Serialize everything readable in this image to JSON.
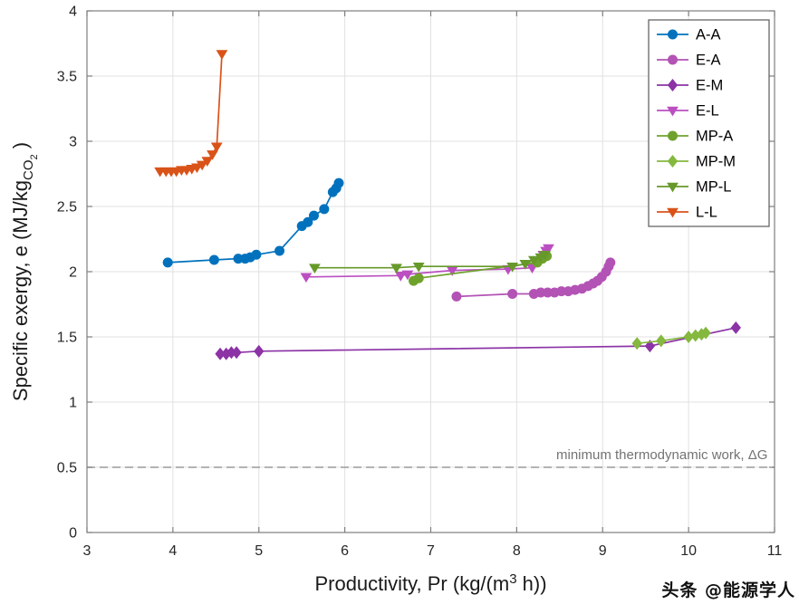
{
  "watermark": "头条 @能源学人",
  "chart_data": {
    "type": "line",
    "title": "",
    "xlabel": {
      "pre": "Productivity, Pr (kg/(m",
      "sup": "3",
      "post": " h))",
      "plain": "Productivity, Pr (kg/(m3 h))"
    },
    "ylabel": {
      "pre": "Specific exergy, e (MJ/kg",
      "sub": "CO",
      "subsub": "2",
      "post": " )",
      "plain": "Specific exergy, e (MJ/kgCO2)"
    },
    "xlim": [
      3,
      11
    ],
    "ylim": [
      0,
      4
    ],
    "xticks": [
      3,
      4,
      5,
      6,
      7,
      8,
      9,
      10,
      11
    ],
    "yticks": [
      0,
      0.5,
      1,
      1.5,
      2,
      2.5,
      3,
      3.5,
      4
    ],
    "grid": true,
    "legend_position": "top-right",
    "axes_box": true,
    "grid_color": "#e0e0e0",
    "box_color": "#7f7f7f",
    "tick_label_color": "#262626",
    "annotation": {
      "y": 0.5,
      "label": "minimum thermodynamic work, ΔG",
      "style": "dashed",
      "color": "#9a9a9a",
      "label_color": "#737373"
    },
    "series": [
      {
        "name": "A-A",
        "color": "#0072BD",
        "marker": "circle",
        "points": [
          [
            3.94,
            2.07
          ],
          [
            4.48,
            2.09
          ],
          [
            4.76,
            2.1
          ],
          [
            4.84,
            2.1
          ],
          [
            4.9,
            2.11
          ],
          [
            4.97,
            2.13
          ],
          [
            5.24,
            2.16
          ],
          [
            5.5,
            2.35
          ],
          [
            5.57,
            2.38
          ],
          [
            5.64,
            2.43
          ],
          [
            5.76,
            2.48
          ],
          [
            5.86,
            2.61
          ],
          [
            5.9,
            2.64
          ],
          [
            5.93,
            2.68
          ]
        ]
      },
      {
        "name": "E-A",
        "color": "#b353b5",
        "marker": "circle",
        "points": [
          [
            7.3,
            1.81
          ],
          [
            7.95,
            1.83
          ],
          [
            8.2,
            1.83
          ],
          [
            8.28,
            1.84
          ],
          [
            8.36,
            1.84
          ],
          [
            8.44,
            1.84
          ],
          [
            8.52,
            1.85
          ],
          [
            8.6,
            1.85
          ],
          [
            8.68,
            1.86
          ],
          [
            8.76,
            1.87
          ],
          [
            8.83,
            1.89
          ],
          [
            8.89,
            1.91
          ],
          [
            8.94,
            1.93
          ],
          [
            8.99,
            1.96
          ],
          [
            9.04,
            2.0
          ],
          [
            9.07,
            2.04
          ],
          [
            9.09,
            2.07
          ]
        ]
      },
      {
        "name": "E-M",
        "color": "#8c33a6",
        "marker": "diamond",
        "points": [
          [
            4.55,
            1.37
          ],
          [
            4.62,
            1.37
          ],
          [
            4.68,
            1.38
          ],
          [
            4.74,
            1.38
          ],
          [
            5.0,
            1.39
          ],
          [
            9.55,
            1.43
          ],
          [
            10.55,
            1.57
          ]
        ]
      },
      {
        "name": "E-L",
        "color": "#bb4fc1",
        "marker": "triangle-down",
        "points": [
          [
            5.55,
            1.96
          ],
          [
            6.65,
            1.97
          ],
          [
            6.73,
            1.98
          ],
          [
            7.25,
            2.01
          ],
          [
            7.9,
            2.02
          ],
          [
            8.18,
            2.03
          ],
          [
            8.26,
            2.08
          ],
          [
            8.31,
            2.13
          ],
          [
            8.34,
            2.16
          ],
          [
            8.37,
            2.18
          ]
        ]
      },
      {
        "name": "MP-A",
        "color": "#6fa22c",
        "marker": "circle",
        "points": [
          [
            6.8,
            1.93
          ],
          [
            6.86,
            1.95
          ],
          [
            8.24,
            2.07
          ],
          [
            8.3,
            2.1
          ],
          [
            8.35,
            2.12
          ]
        ]
      },
      {
        "name": "MP-M",
        "color": "#84b83e",
        "marker": "diamond",
        "points": [
          [
            9.4,
            1.45
          ],
          [
            9.68,
            1.47
          ],
          [
            10.0,
            1.5
          ],
          [
            10.08,
            1.51
          ],
          [
            10.15,
            1.52
          ],
          [
            10.2,
            1.53
          ]
        ]
      },
      {
        "name": "MP-L",
        "color": "#67992a",
        "marker": "triangle-down",
        "points": [
          [
            5.65,
            2.03
          ],
          [
            6.6,
            2.03
          ],
          [
            6.86,
            2.04
          ],
          [
            7.95,
            2.04
          ],
          [
            8.1,
            2.06
          ],
          [
            8.2,
            2.09
          ],
          [
            8.28,
            2.11
          ],
          [
            8.33,
            2.13
          ]
        ]
      },
      {
        "name": "L-L",
        "color": "#D95319",
        "marker": "triangle-down",
        "points": [
          [
            3.85,
            2.77
          ],
          [
            3.92,
            2.77
          ],
          [
            3.98,
            2.77
          ],
          [
            4.04,
            2.77
          ],
          [
            4.1,
            2.78
          ],
          [
            4.16,
            2.78
          ],
          [
            4.22,
            2.79
          ],
          [
            4.28,
            2.8
          ],
          [
            4.34,
            2.82
          ],
          [
            4.4,
            2.85
          ],
          [
            4.46,
            2.9
          ],
          [
            4.51,
            2.96
          ],
          [
            4.57,
            3.67
          ]
        ]
      }
    ]
  }
}
